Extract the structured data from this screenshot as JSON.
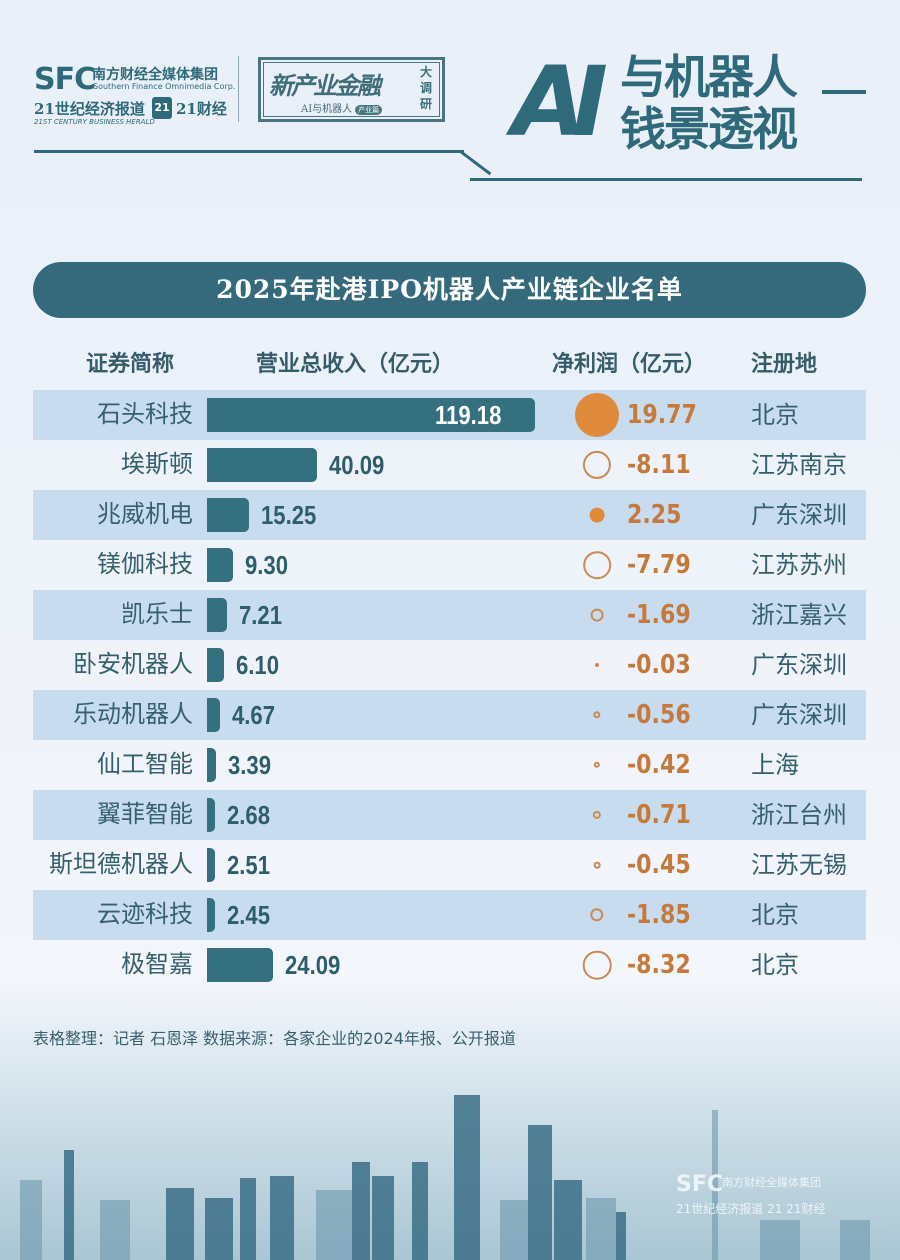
{
  "header": {
    "sfc_logo": "SFC",
    "sfc_cn": "南方财经全媒体集团",
    "sfc_en": "Southern Finance Omnimedia Corp.",
    "cbh_cn": "21世纪经济报道",
    "cbh_en": "21ST CENTURY BUSINESS HERALD",
    "badge_21": "21",
    "caijing_21": "21财经",
    "stamp_main": "新产业金融",
    "stamp_side": "大调研",
    "stamp_sub": "AI与机器人",
    "stamp_pill": "产业篇",
    "big_ai": "AI",
    "big_line1": "与机器人",
    "big_line2": "钱景透视"
  },
  "title": "2025年赴港IPO机器人产业链企业名单",
  "columns": {
    "name": "证券简称",
    "revenue": "营业总收入（亿元）",
    "profit": "净利润（亿元）",
    "location": "注册地"
  },
  "colors": {
    "bar": "#35707f",
    "profit_dot": "#e08a3c",
    "profit_text": "#c57a3c",
    "title_bg": "#346a7b",
    "row_alt": "#c8dcf0"
  },
  "chart_data": {
    "type": "table",
    "title": "2025年赴港IPO机器人产业链企业名单",
    "columns": [
      "证券简称",
      "营业总收入（亿元）",
      "净利润（亿元）",
      "注册地"
    ],
    "categories": [
      "石头科技",
      "埃斯顿",
      "兆威机电",
      "镁伽科技",
      "凯乐士",
      "卧安机器人",
      "乐动机器人",
      "仙工智能",
      "翼菲智能",
      "斯坦德机器人",
      "云迹科技",
      "极智嘉"
    ],
    "series": [
      {
        "name": "营业总收入（亿元）",
        "type": "bar",
        "values": [
          119.18,
          40.09,
          15.25,
          9.3,
          7.21,
          6.1,
          4.67,
          3.39,
          2.68,
          2.51,
          2.45,
          24.09
        ]
      },
      {
        "name": "净利润（亿元）",
        "type": "bubble",
        "values": [
          19.77,
          -8.11,
          2.25,
          -7.79,
          -1.69,
          -0.03,
          -0.56,
          -0.42,
          -0.71,
          -0.45,
          -1.85,
          -8.32
        ]
      }
    ],
    "locations": [
      "北京",
      "江苏南京",
      "广东深圳",
      "江苏苏州",
      "浙江嘉兴",
      "广东深圳",
      "广东深圳",
      "上海",
      "浙江台州",
      "江苏无锡",
      "北京",
      "北京"
    ]
  },
  "rows": [
    {
      "name": "石头科技",
      "revenue": "119.18",
      "profit": "19.77",
      "location": "北京"
    },
    {
      "name": "埃斯顿",
      "revenue": "40.09",
      "profit": "-8.11",
      "location": "江苏南京"
    },
    {
      "name": "兆威机电",
      "revenue": "15.25",
      "profit": "2.25",
      "location": "广东深圳"
    },
    {
      "name": "镁伽科技",
      "revenue": "9.30",
      "profit": "-7.79",
      "location": "江苏苏州"
    },
    {
      "name": "凯乐士",
      "revenue": "7.21",
      "profit": "-1.69",
      "location": "浙江嘉兴"
    },
    {
      "name": "卧安机器人",
      "revenue": "6.10",
      "profit": "-0.03",
      "location": "广东深圳"
    },
    {
      "name": "乐动机器人",
      "revenue": "4.67",
      "profit": "-0.56",
      "location": "广东深圳"
    },
    {
      "name": "仙工智能",
      "revenue": "3.39",
      "profit": "-0.42",
      "location": "上海"
    },
    {
      "name": "翼菲智能",
      "revenue": "2.68",
      "profit": "-0.71",
      "location": "浙江台州"
    },
    {
      "name": "斯坦德机器人",
      "revenue": "2.51",
      "profit": "-0.45",
      "location": "江苏无锡"
    },
    {
      "name": "云迹科技",
      "revenue": "2.45",
      "profit": "-1.85",
      "location": "北京"
    },
    {
      "name": "极智嘉",
      "revenue": "24.09",
      "profit": "-8.32",
      "location": "北京"
    }
  ],
  "footer": {
    "source": "表格整理：记者 石恩泽   数据来源：各家企业的2024年报、公开报道",
    "wm_logo": "SFC",
    "wm_cn": "南方财经全媒体集团",
    "wm_sub": "21世纪经济报道  21 21财经"
  }
}
